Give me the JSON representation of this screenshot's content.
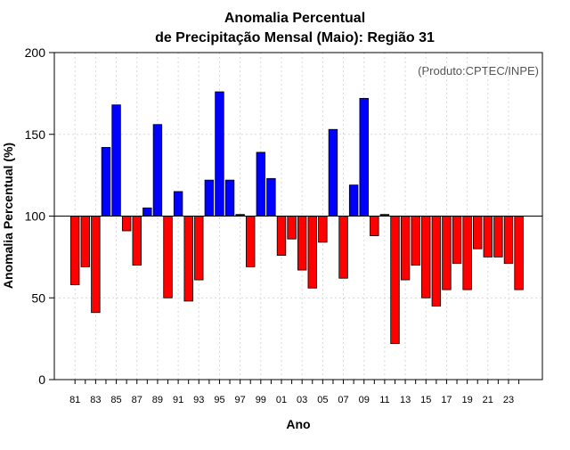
{
  "chart_data": {
    "type": "bar",
    "title_line1": "Anomalia Percentual",
    "title_line2": "de Precipitação Mensal (Maio): Região 31",
    "xlabel": "Ano",
    "ylabel": "Anomalia Percentual (%)",
    "credit": "(Produto:CPTEC/INPE)",
    "ylim": [
      0,
      200
    ],
    "yticks": [
      0,
      50,
      100,
      150,
      200
    ],
    "baseline": 100,
    "grid": true,
    "colors": {
      "above": "#0000ff",
      "below": "#ff0000",
      "outline": "#000000",
      "grid": "#d9d9d9"
    },
    "categories": [
      "81",
      "82",
      "83",
      "84",
      "85",
      "86",
      "87",
      "88",
      "89",
      "90",
      "91",
      "92",
      "93",
      "94",
      "95",
      "96",
      "97",
      "98",
      "99",
      "00",
      "01",
      "02",
      "03",
      "04",
      "05",
      "06",
      "07",
      "08",
      "09",
      "10",
      "11",
      "12",
      "13",
      "14",
      "15",
      "16",
      "17",
      "18",
      "19",
      "20",
      "21",
      "22",
      "23",
      "24"
    ],
    "xtick_labels": [
      "81",
      "83",
      "85",
      "87",
      "89",
      "91",
      "93",
      "95",
      "97",
      "99",
      "01",
      "03",
      "05",
      "07",
      "09",
      "11",
      "13",
      "15",
      "17",
      "19",
      "21",
      "23"
    ],
    "values": [
      58,
      69,
      41,
      142,
      168,
      91,
      70,
      105,
      156,
      50,
      115,
      48,
      61,
      122,
      176,
      122,
      101,
      69,
      139,
      123,
      76,
      86,
      67,
      56,
      84,
      153,
      62,
      119,
      172,
      88,
      101,
      22,
      61,
      70,
      50,
      45,
      55,
      71,
      55,
      80,
      75,
      75,
      71,
      55
    ]
  }
}
